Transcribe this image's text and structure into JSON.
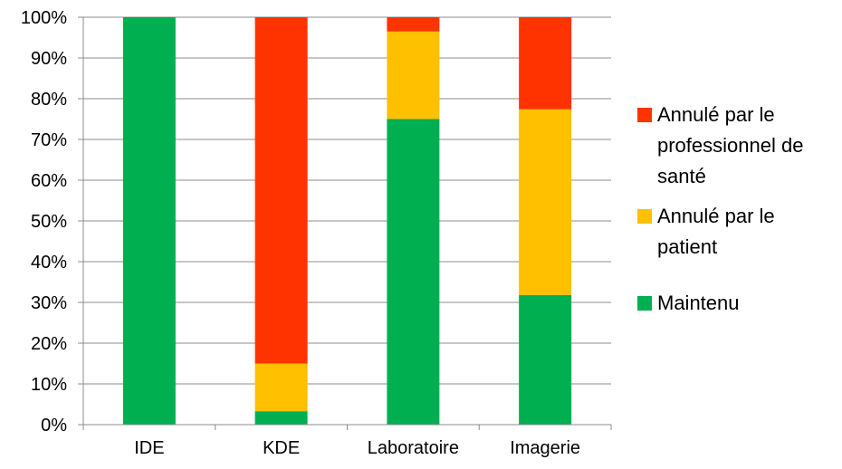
{
  "chart_data": {
    "type": "bar",
    "stacked": true,
    "categories": [
      "IDE",
      "KDE",
      "Laboratoire",
      "Imagerie"
    ],
    "series": [
      {
        "name": "Maintenu",
        "color": "#00B050",
        "values": [
          100,
          3.3,
          75,
          31.8
        ]
      },
      {
        "name": "Annulé par le patient",
        "color": "#FFC000",
        "values": [
          0,
          11.7,
          21.5,
          45.6
        ]
      },
      {
        "name": "Annulé par le professionnel de santé",
        "color": "#FF3300",
        "values": [
          0,
          85,
          3.5,
          22.6
        ]
      }
    ],
    "title": "",
    "xlabel": "",
    "ylabel": "",
    "ylim": [
      0,
      100
    ],
    "y_ticks": [
      "0%",
      "10%",
      "20%",
      "30%",
      "40%",
      "50%",
      "60%",
      "70%",
      "80%",
      "90%",
      "100%"
    ],
    "grid": true,
    "legend_position": "right"
  },
  "legend": {
    "items": [
      {
        "label": "Annulé par le professionnel de santé",
        "color": "#FF3300"
      },
      {
        "label": "Annulé par le patient",
        "color": "#FFC000"
      },
      {
        "label": "Maintenu",
        "color": "#00B050"
      }
    ]
  }
}
